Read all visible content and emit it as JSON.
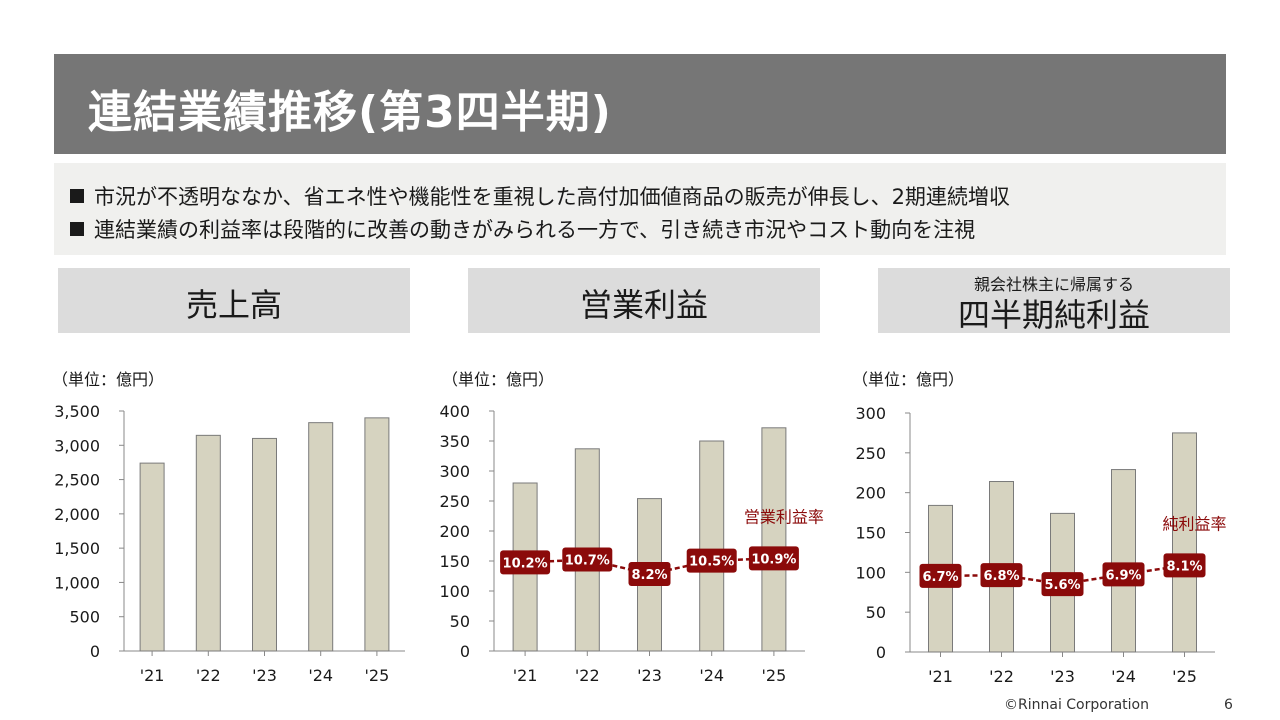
{
  "header": {
    "title": "連結業績推移(第3四半期)"
  },
  "bullets": [
    "市況が不透明ななか、省エネ性や機能性を重視した高付加価値商品の販売が伸長し、2期連続増収",
    "連結業績の利益率は段階的に改善の動きがみられる一方で、引き続き市況やコスト動向を注視"
  ],
  "panels": [
    {
      "title": "売上高",
      "subtitle": "",
      "unit": "（単位：億円）"
    },
    {
      "title": "営業利益",
      "subtitle": "",
      "unit": "（単位：億円）"
    },
    {
      "title": "四半期純利益",
      "subtitle": "親会社株主に帰属する",
      "unit": "（単位：億円）"
    }
  ],
  "chart_data": [
    {
      "type": "bar",
      "title": "売上高",
      "categories": [
        "'21",
        "'22",
        "'23",
        "'24",
        "'25"
      ],
      "values": [
        2740,
        3145,
        3100,
        3330,
        3400
      ],
      "ylim": [
        0,
        3500
      ],
      "yticks": [
        0,
        500,
        1000,
        1500,
        2000,
        2500,
        3000,
        3500
      ],
      "ytick_labels": [
        "0",
        "500",
        "1,000",
        "1,500",
        "2,000",
        "2,500",
        "3,000",
        "3,500"
      ],
      "bar_color": "#d6d3c0",
      "grid": false
    },
    {
      "type": "bar",
      "title": "営業利益",
      "categories": [
        "'21",
        "'22",
        "'23",
        "'24",
        "'25"
      ],
      "values": [
        280,
        337,
        254,
        350,
        372
      ],
      "ylim": [
        0,
        400
      ],
      "yticks": [
        0,
        50,
        100,
        150,
        200,
        250,
        300,
        350,
        400
      ],
      "ytick_labels": [
        "0",
        "50",
        "100",
        "150",
        "200",
        "250",
        "300",
        "350",
        "400"
      ],
      "bar_color": "#d6d3c0",
      "grid": false,
      "rate_series": {
        "name": "営業利益率",
        "values": [
          10.2,
          10.7,
          8.2,
          10.5,
          10.9
        ],
        "labels": [
          "10.2%",
          "10.7%",
          "8.2%",
          "10.5%",
          "10.9%"
        ],
        "color": "#8b0a0a"
      }
    },
    {
      "type": "bar",
      "title": "四半期純利益",
      "categories": [
        "'21",
        "'22",
        "'23",
        "'24",
        "'25"
      ],
      "values": [
        184,
        214,
        174,
        229,
        275
      ],
      "ylim": [
        0,
        300
      ],
      "yticks": [
        0,
        50,
        100,
        150,
        200,
        250,
        300
      ],
      "ytick_labels": [
        "0",
        "50",
        "100",
        "150",
        "200",
        "250",
        "300"
      ],
      "bar_color": "#d6d3c0",
      "grid": false,
      "rate_series": {
        "name": "純利益率",
        "values": [
          6.7,
          6.8,
          5.6,
          6.9,
          8.1
        ],
        "labels": [
          "6.7%",
          "6.8%",
          "5.6%",
          "6.9%",
          "8.1%"
        ],
        "color": "#8b0a0a"
      }
    }
  ],
  "footer": {
    "copyright": "©Rinnai Corporation",
    "page": "6"
  }
}
